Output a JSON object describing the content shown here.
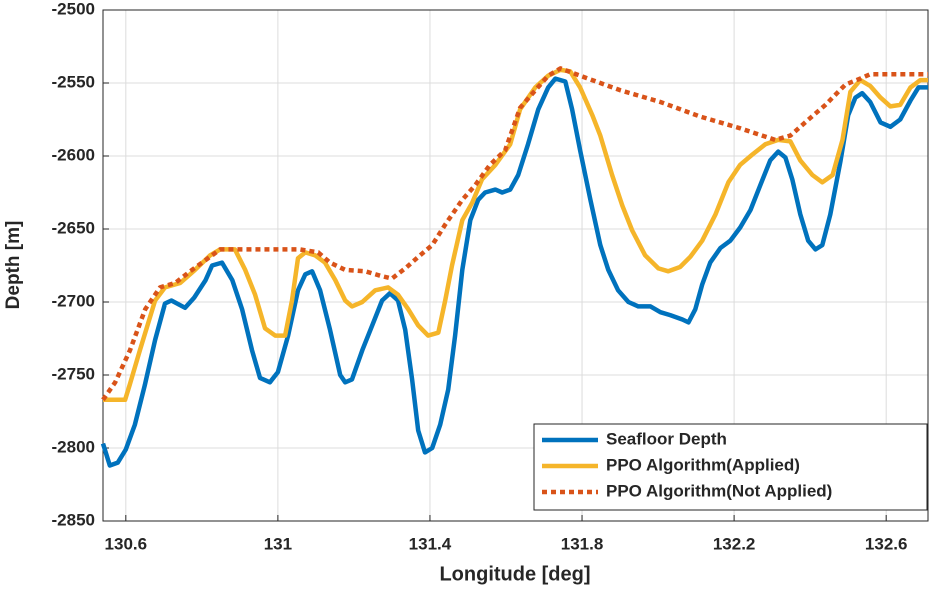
{
  "chart_data": {
    "type": "line",
    "xlabel": "Longitude [deg]",
    "ylabel": "Depth [m]",
    "xlim": [
      130.54,
      132.71
    ],
    "xticks": [
      130.6,
      131,
      131.4,
      131.8,
      132.2,
      132.6
    ],
    "ylim": [
      -2850,
      -2500
    ],
    "yticks": [
      -2850,
      -2800,
      -2750,
      -2700,
      -2650,
      -2600,
      -2550,
      -2500
    ],
    "grid": true,
    "legend": "lower right",
    "series": [
      {
        "name": "Seafloor Depth",
        "color": "#0072bd",
        "style": "solid",
        "x": [
          130.54,
          130.558,
          130.579,
          130.6,
          130.624,
          130.65,
          130.677,
          130.703,
          130.72,
          130.756,
          130.78,
          130.81,
          130.827,
          130.853,
          130.88,
          130.906,
          130.932,
          130.953,
          130.979,
          131.0,
          131.027,
          131.053,
          131.072,
          131.09,
          131.111,
          131.137,
          131.164,
          131.177,
          131.195,
          131.222,
          131.248,
          131.274,
          131.295,
          131.316,
          131.335,
          131.353,
          131.369,
          131.387,
          131.406,
          131.427,
          131.448,
          131.466,
          131.485,
          131.506,
          131.527,
          131.545,
          131.572,
          131.59,
          131.611,
          131.632,
          131.658,
          131.685,
          131.711,
          131.73,
          131.756,
          131.774,
          131.795,
          131.822,
          131.848,
          131.869,
          131.895,
          131.922,
          131.948,
          131.98,
          132.006,
          132.032,
          132.064,
          132.08,
          132.098,
          132.116,
          132.137,
          132.164,
          132.19,
          132.216,
          132.243,
          132.269,
          132.295,
          132.316,
          132.335,
          132.353,
          132.374,
          132.395,
          132.414,
          132.432,
          132.453,
          132.48,
          132.5,
          132.519,
          132.537,
          132.558,
          132.585,
          132.611,
          132.637,
          132.664,
          132.685,
          132.71
        ],
        "values": [
          -2797,
          -2812,
          -2810,
          -2801,
          -2784,
          -2757,
          -2726,
          -2701,
          -2699,
          -2704,
          -2697,
          -2685,
          -2675,
          -2673,
          -2685,
          -2705,
          -2733,
          -2752,
          -2755,
          -2748,
          -2723,
          -2692,
          -2681,
          -2679,
          -2692,
          -2719,
          -2750,
          -2755,
          -2753,
          -2733,
          -2716,
          -2699,
          -2694,
          -2699,
          -2719,
          -2753,
          -2788,
          -2803,
          -2800,
          -2784,
          -2760,
          -2723,
          -2678,
          -2644,
          -2630,
          -2625,
          -2623,
          -2625,
          -2623,
          -2613,
          -2592,
          -2568,
          -2553,
          -2547,
          -2549,
          -2568,
          -2596,
          -2630,
          -2661,
          -2678,
          -2692,
          -2700,
          -2703,
          -2703,
          -2707,
          -2709,
          -2712,
          -2714,
          -2705,
          -2688,
          -2673,
          -2663,
          -2658,
          -2649,
          -2637,
          -2620,
          -2603,
          -2597,
          -2601,
          -2616,
          -2640,
          -2658,
          -2664,
          -2661,
          -2640,
          -2603,
          -2572,
          -2560,
          -2557,
          -2563,
          -2577,
          -2580,
          -2575,
          -2562,
          -2553,
          -2553
        ]
      },
      {
        "name": "PPO Algorithm(Applied)",
        "color": "#f5b52a",
        "style": "solid",
        "x": [
          130.54,
          130.598,
          130.61,
          130.637,
          130.677,
          130.703,
          130.743,
          130.782,
          130.822,
          130.848,
          130.887,
          130.914,
          130.94,
          130.966,
          130.993,
          131.019,
          131.037,
          131.053,
          131.072,
          131.098,
          131.124,
          131.151,
          131.177,
          131.195,
          131.222,
          131.256,
          131.29,
          131.316,
          131.343,
          131.369,
          131.395,
          131.422,
          131.44,
          131.458,
          131.485,
          131.511,
          131.537,
          131.572,
          131.611,
          131.637,
          131.677,
          131.711,
          131.743,
          131.769,
          131.795,
          131.827,
          131.848,
          131.879,
          131.906,
          131.932,
          131.966,
          132.001,
          132.027,
          132.058,
          132.085,
          132.116,
          132.151,
          132.185,
          132.216,
          132.248,
          132.282,
          132.316,
          132.348,
          132.374,
          132.406,
          132.432,
          132.459,
          132.485,
          132.506,
          132.532,
          132.558,
          132.585,
          132.611,
          132.637,
          132.664,
          132.69,
          132.71
        ],
        "values": [
          -2767,
          -2767,
          -2757,
          -2733,
          -2699,
          -2690,
          -2687,
          -2678,
          -2668,
          -2664,
          -2664,
          -2678,
          -2695,
          -2718,
          -2723,
          -2723,
          -2699,
          -2670,
          -2666,
          -2668,
          -2673,
          -2685,
          -2699,
          -2703,
          -2700,
          -2692,
          -2690,
          -2695,
          -2705,
          -2716,
          -2723,
          -2721,
          -2699,
          -2675,
          -2644,
          -2632,
          -2616,
          -2606,
          -2592,
          -2568,
          -2553,
          -2545,
          -2541,
          -2542,
          -2553,
          -2572,
          -2586,
          -2613,
          -2634,
          -2651,
          -2668,
          -2677,
          -2679,
          -2676,
          -2669,
          -2658,
          -2640,
          -2618,
          -2606,
          -2599,
          -2592,
          -2589,
          -2590,
          -2603,
          -2613,
          -2618,
          -2613,
          -2589,
          -2556,
          -2548,
          -2552,
          -2560,
          -2566,
          -2565,
          -2553,
          -2548,
          -2548
        ]
      },
      {
        "name": "PPO Algorithm(Not Applied)",
        "color": "#d95319",
        "style": "dotted",
        "x": [
          130.54,
          130.572,
          130.611,
          130.651,
          130.69,
          130.73,
          130.769,
          130.822,
          130.848,
          130.953,
          131.058,
          131.106,
          131.137,
          131.177,
          131.23,
          131.269,
          131.3,
          131.335,
          131.374,
          131.406,
          131.44,
          131.485,
          131.519,
          131.558,
          131.598,
          131.637,
          131.677,
          131.711,
          131.743,
          131.795,
          131.901,
          132.006,
          132.111,
          132.216,
          132.308,
          132.348,
          132.387,
          132.44,
          132.493,
          132.532,
          132.558,
          132.71
        ],
        "values": [
          -2767,
          -2755,
          -2733,
          -2705,
          -2690,
          -2687,
          -2679,
          -2669,
          -2664,
          -2664,
          -2664,
          -2666,
          -2673,
          -2678,
          -2679,
          -2682,
          -2684,
          -2677,
          -2668,
          -2661,
          -2647,
          -2630,
          -2620,
          -2606,
          -2596,
          -2567,
          -2555,
          -2545,
          -2540,
          -2545,
          -2555,
          -2563,
          -2573,
          -2581,
          -2589,
          -2586,
          -2577,
          -2565,
          -2551,
          -2547,
          -2544,
          -2544
        ]
      }
    ]
  }
}
